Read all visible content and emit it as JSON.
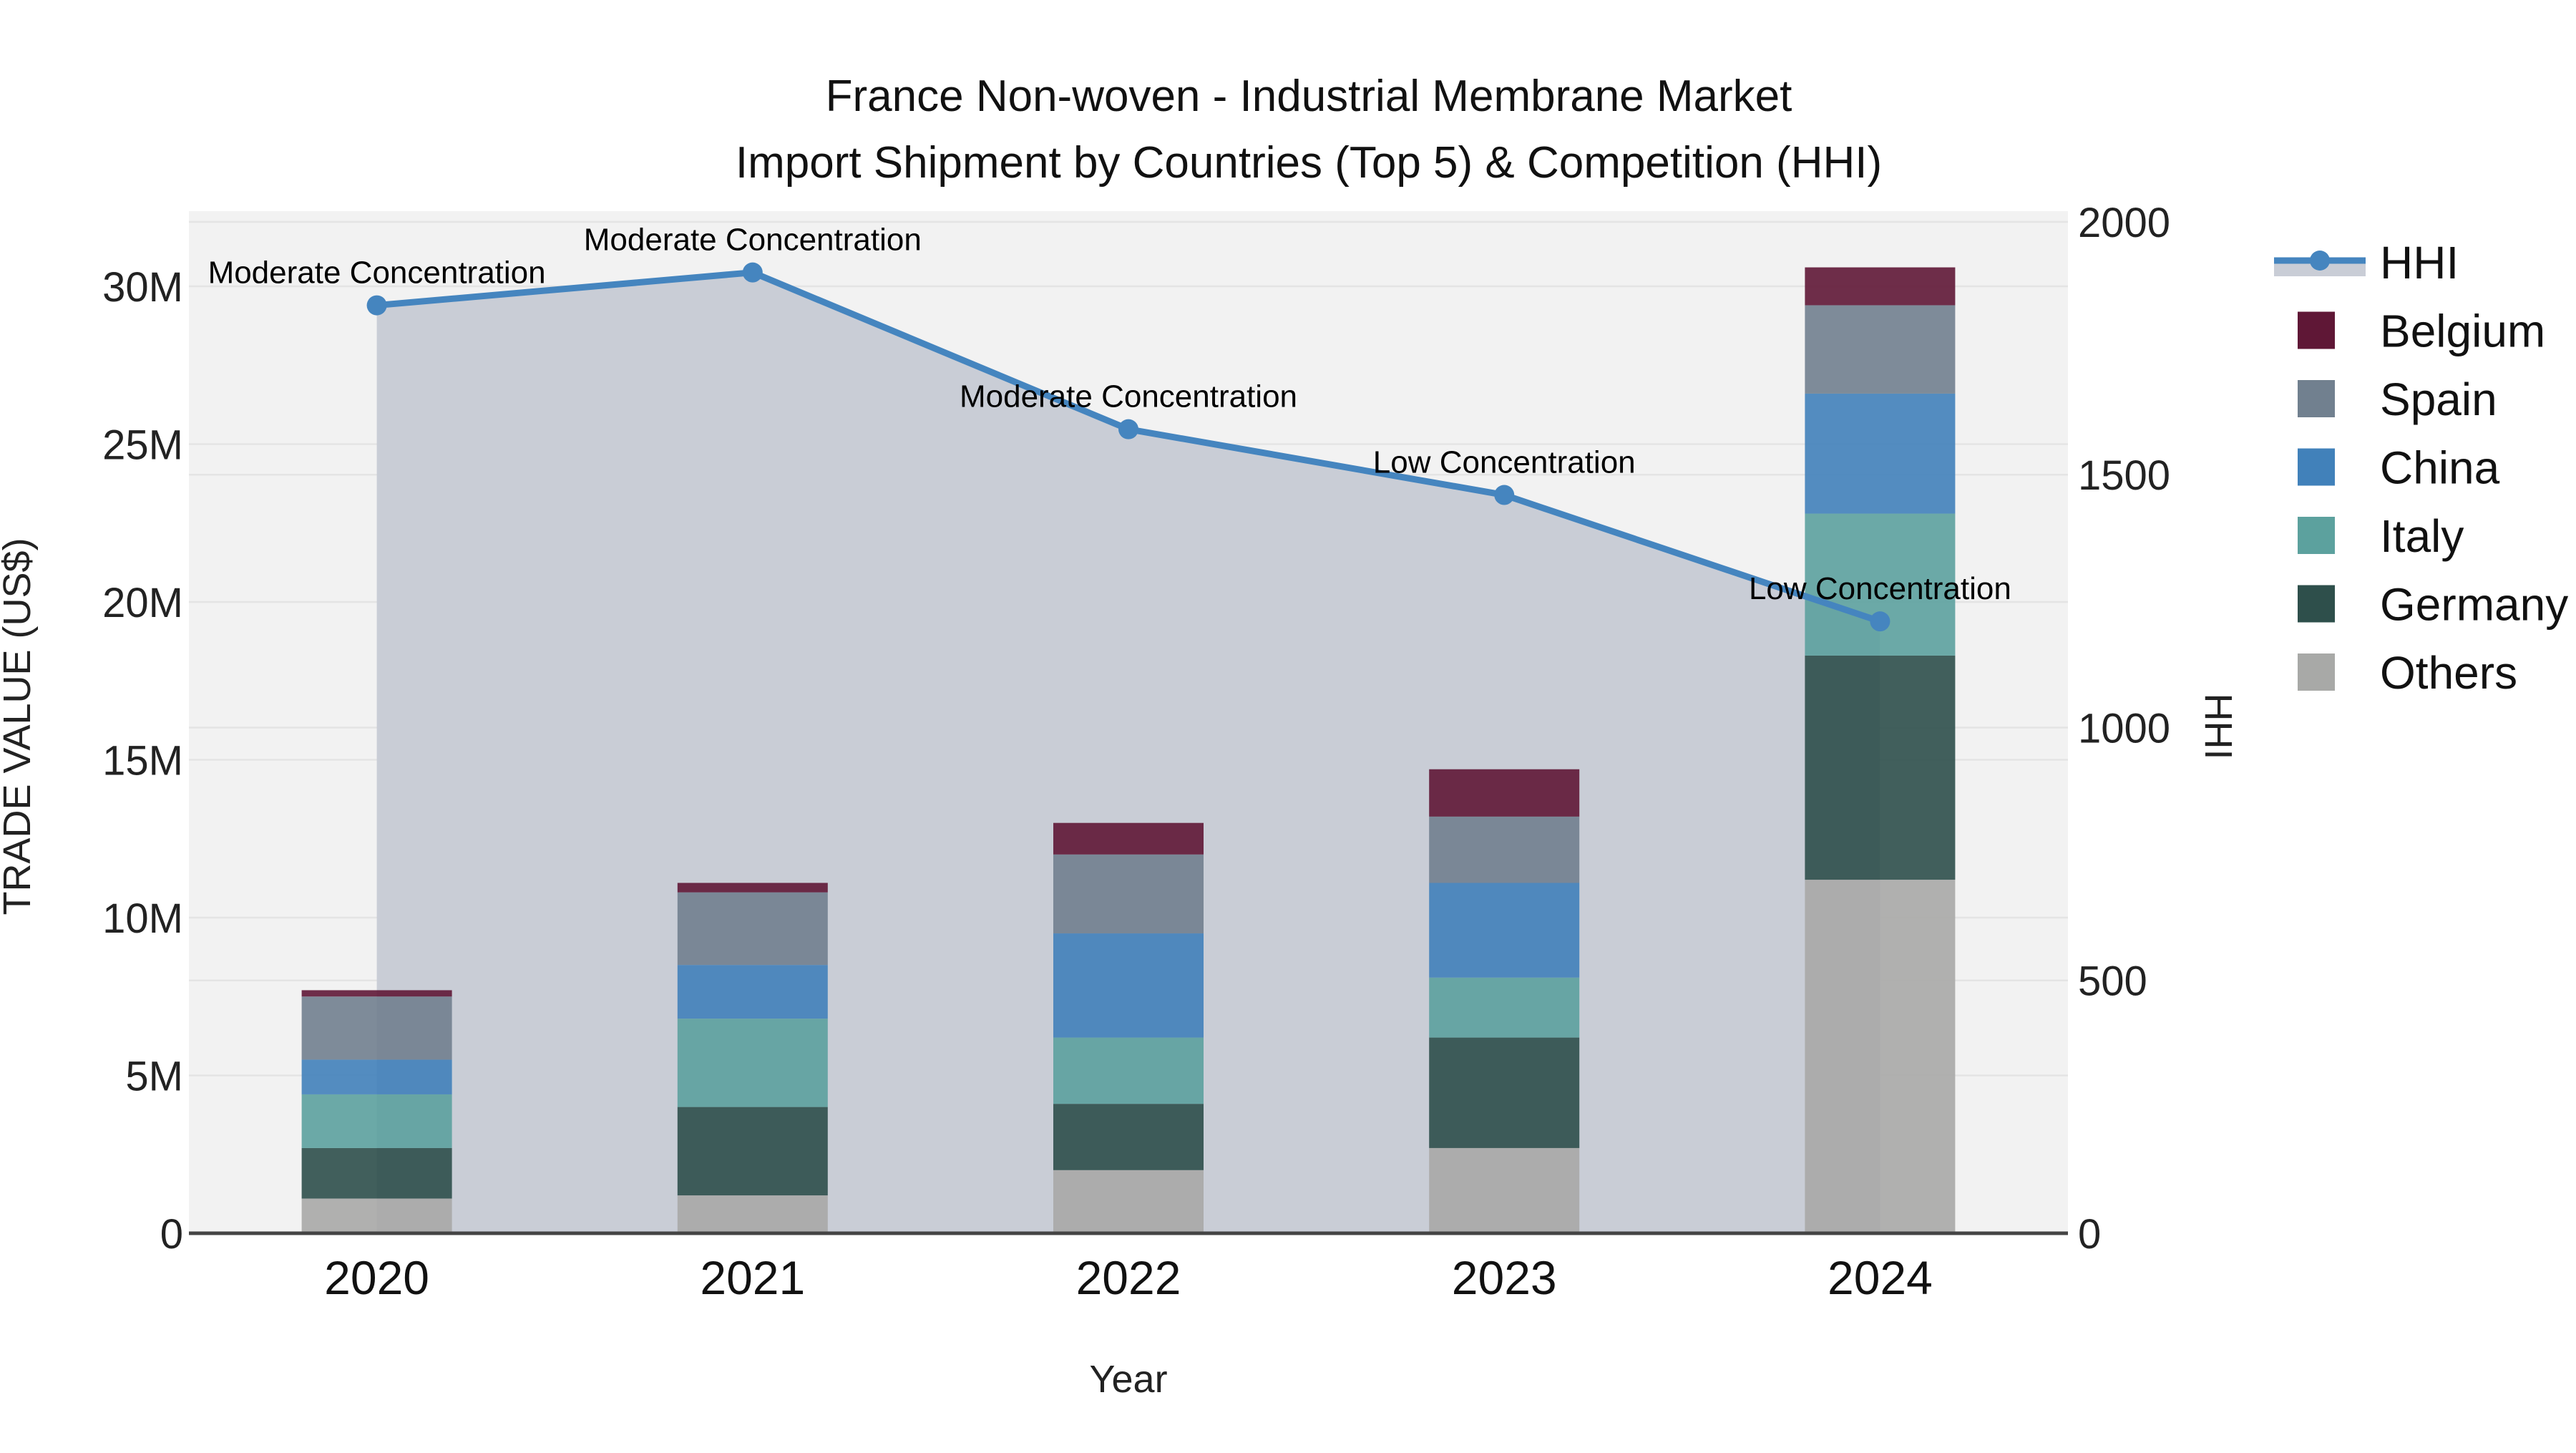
{
  "title": {
    "line1": "France Non-woven - Industrial Membrane Market",
    "line2": "Import Shipment by Countries (Top 5) & Competition (HHI)"
  },
  "axes": {
    "x": {
      "title": "Year",
      "ticks": [
        "2020",
        "2021",
        "2022",
        "2023",
        "2024"
      ]
    },
    "y_left": {
      "title": "TRADE VALUE (US$)",
      "tick_labels": [
        "0",
        "5M",
        "10M",
        "15M",
        "20M",
        "25M",
        "30M"
      ],
      "tick_values_millions": [
        0,
        5,
        10,
        15,
        20,
        25,
        30
      ],
      "range_millions": [
        0,
        32
      ]
    },
    "y_right": {
      "title": "HHI",
      "tick_labels": [
        "0",
        "500",
        "1000",
        "1500",
        "2000"
      ],
      "tick_values": [
        0,
        500,
        1000,
        1500,
        2000
      ],
      "range": [
        0,
        2000
      ]
    }
  },
  "legend": {
    "order": [
      "HHI",
      "Belgium",
      "Spain",
      "China",
      "Italy",
      "Germany",
      "Others"
    ]
  },
  "colors": {
    "plot_background": "#f2f2f2",
    "gridline": "#e4e4e4",
    "axis_line": "#444444",
    "hhi_line": "#4585bf",
    "hhi_area_fill": "#c9cdd6",
    "belgium": "#5f1736",
    "spain": "#71808f",
    "china": "#4181ba",
    "italy": "#5ca19e",
    "germany": "#2e4f4b",
    "others": "#a8a9a7"
  },
  "chart_data": {
    "type": "bar+line",
    "subtype": "stacked bars (left axis, US$ millions) with HHI line + area (right axis)",
    "categories": [
      "2020",
      "2021",
      "2022",
      "2023",
      "2024"
    ],
    "unit": "US$ millions",
    "stack_order_bottom_to_top": [
      "Others",
      "Germany",
      "Italy",
      "China",
      "Spain",
      "Belgium"
    ],
    "series": [
      {
        "name": "Others",
        "color_key": "others",
        "values": [
          1.1,
          1.2,
          2.0,
          2.7,
          11.2
        ]
      },
      {
        "name": "Germany",
        "color_key": "germany",
        "values": [
          1.6,
          2.8,
          2.1,
          3.5,
          7.1
        ]
      },
      {
        "name": "Italy",
        "color_key": "italy",
        "values": [
          1.7,
          2.8,
          2.1,
          1.9,
          4.5
        ]
      },
      {
        "name": "China",
        "color_key": "china",
        "values": [
          1.1,
          1.7,
          3.3,
          3.0,
          3.8
        ]
      },
      {
        "name": "Spain",
        "color_key": "spain",
        "values": [
          2.0,
          2.3,
          2.5,
          2.1,
          2.8
        ]
      },
      {
        "name": "Belgium",
        "color_key": "belgium",
        "values": [
          0.2,
          0.3,
          1.0,
          1.5,
          1.2
        ]
      }
    ],
    "bar_totals_millions": [
      7.7,
      11.1,
      13.0,
      14.7,
      30.6
    ],
    "line_series": {
      "name": "HHI",
      "color_key": "hhi_line",
      "area_color_key": "hhi_area_fill",
      "values": [
        1835,
        1900,
        1590,
        1460,
        1210
      ]
    },
    "annotations": [
      {
        "category": "2020",
        "text": "Moderate Concentration"
      },
      {
        "category": "2021",
        "text": "Moderate Concentration"
      },
      {
        "category": "2022",
        "text": "Moderate Concentration"
      },
      {
        "category": "2023",
        "text": "Low Concentration"
      },
      {
        "category": "2024",
        "text": "Low Concentration"
      }
    ],
    "legend_position": "right",
    "grid": true
  }
}
